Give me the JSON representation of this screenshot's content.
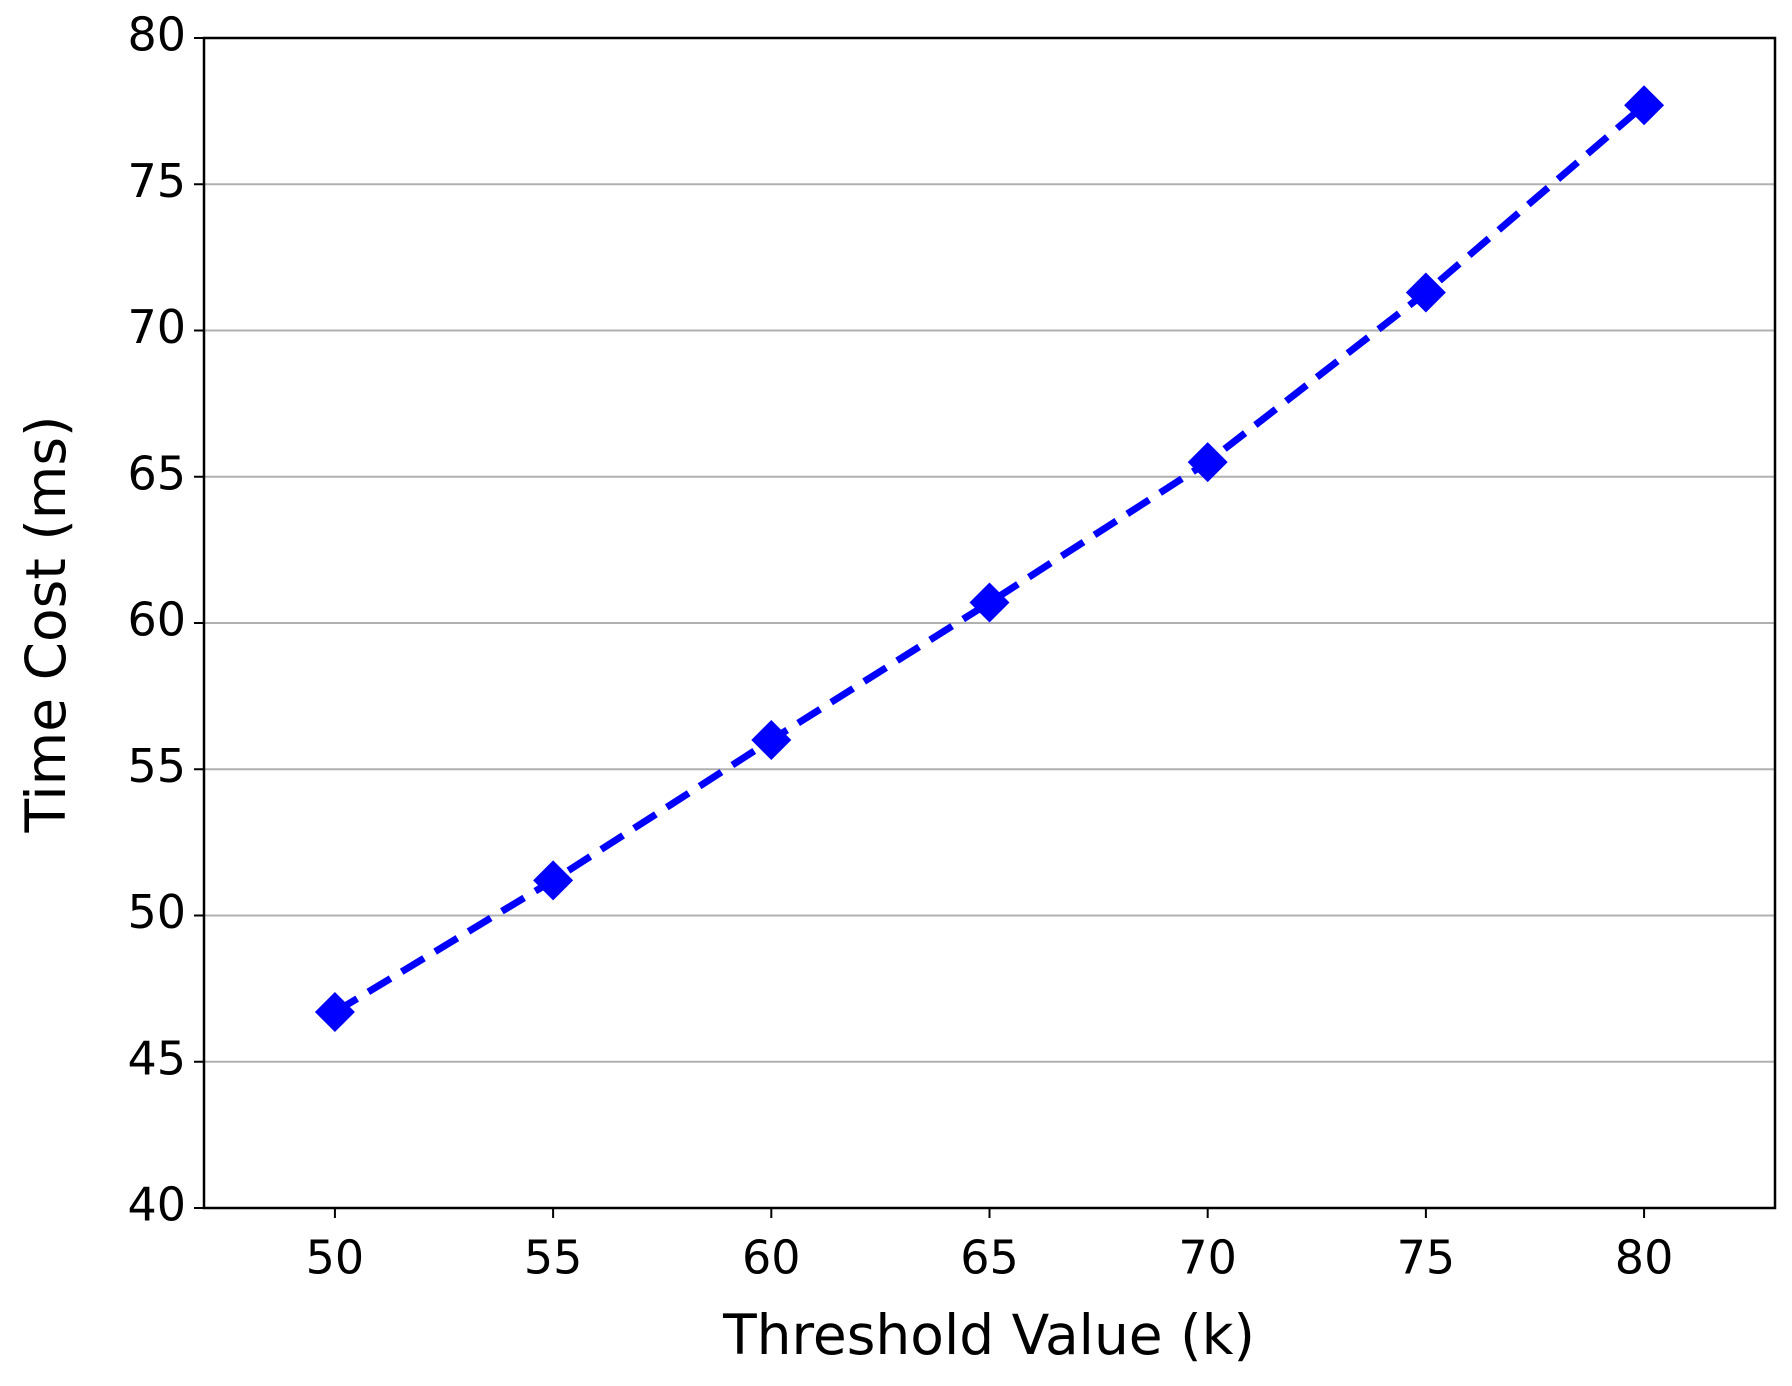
{
  "chart_data": {
    "type": "line",
    "xlabel": "Threshold Value (k)",
    "ylabel": "Time Cost (ms)",
    "x": [
      50,
      55,
      60,
      65,
      70,
      75,
      80
    ],
    "values": [
      46.7,
      51.2,
      56.0,
      60.7,
      65.5,
      71.3,
      77.7
    ],
    "color": "#0000ff",
    "linestyle": "dashed",
    "marker": "diamond",
    "xlim": [
      47,
      83
    ],
    "xticks": [
      50,
      55,
      60,
      65,
      70,
      75,
      80
    ],
    "ylim": [
      40,
      80
    ],
    "yticks": [
      40,
      45,
      50,
      55,
      60,
      65,
      70,
      75,
      80
    ],
    "grid": "y"
  }
}
